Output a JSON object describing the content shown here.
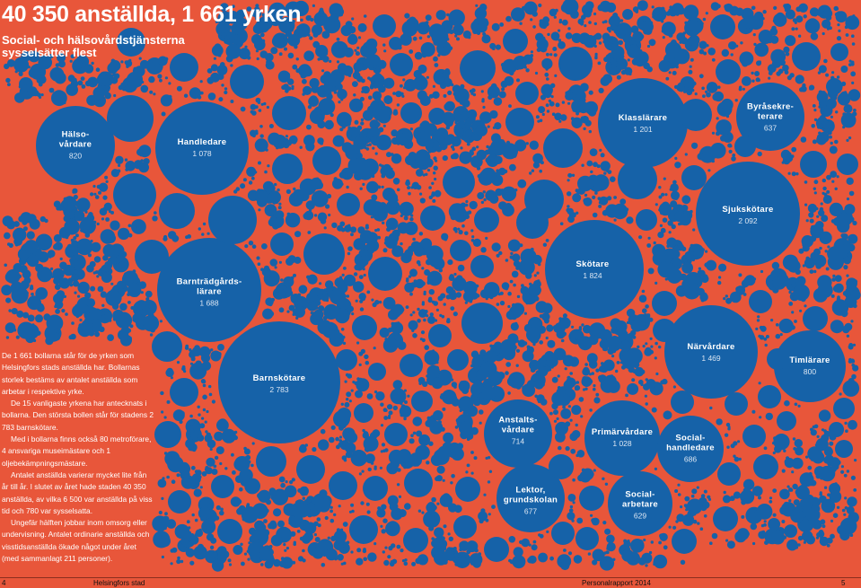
{
  "title": "40 350 anställda, 1 661 yrken",
  "subtitle": "Social- och hälsovårdstjänsterna sysselsätter flest",
  "colors": {
    "background": "#e8563a",
    "bubble": "#1662a8",
    "text": "#ffffff"
  },
  "occupations": [
    {
      "name": "Hälso-\nvårdare",
      "count": "820"
    },
    {
      "name": "Handledare",
      "count": "1 078"
    },
    {
      "name": "Klasslärare",
      "count": "1 201"
    },
    {
      "name": "Byråsekre-\nterare",
      "count": "637"
    },
    {
      "name": "Sjukskötare",
      "count": "2 092"
    },
    {
      "name": "Barnträdgårds-\nlärare",
      "count": "1 688"
    },
    {
      "name": "Skötare",
      "count": "1 824"
    },
    {
      "name": "Barnskötare",
      "count": "2 783"
    },
    {
      "name": "Närvårdare",
      "count": "1 469"
    },
    {
      "name": "Timlärare",
      "count": "800"
    },
    {
      "name": "Anstalts-\nvårdare",
      "count": "714"
    },
    {
      "name": "Primärvårdare",
      "count": "1 028"
    },
    {
      "name": "Social-\nhandledare",
      "count": "686"
    },
    {
      "name": "Lektor,\ngrundskolan",
      "count": "677"
    },
    {
      "name": "Social-\narbetare",
      "count": "629"
    }
  ],
  "info_paragraphs": [
    "De 1 661 bollarna står för de yrken som Helsingfors stads anställda har. Bollarnas storlek bestäms av antalet anställda som arbetar i respektive yrke.",
    "De 15 vanligaste yrkena har antecknats i bollarna. Den största bollen står för stadens 2 783 barnskötare.",
    "Med i bollarna finns också 80 metroförare, 4 ansvariga museimästare och 1 oljebekämpningsmästare.",
    "Antalet anställda varierar mycket lite från år till år. I slutet av året hade staden 40 350 anställda, av vilka 6 500 var anställda på viss tid och 780 var sysselsatta.",
    "Ungefär hälften jobbar inom omsorg eller undervisning. Antalet ordinarie anställda och visstidsanställda ökade något under året (med sammanlagt 211 personer)."
  ],
  "footer": {
    "page_left": "4",
    "publisher": "Helsingfors stad",
    "report": "Personalrapport 2014",
    "page_right": "5"
  }
}
